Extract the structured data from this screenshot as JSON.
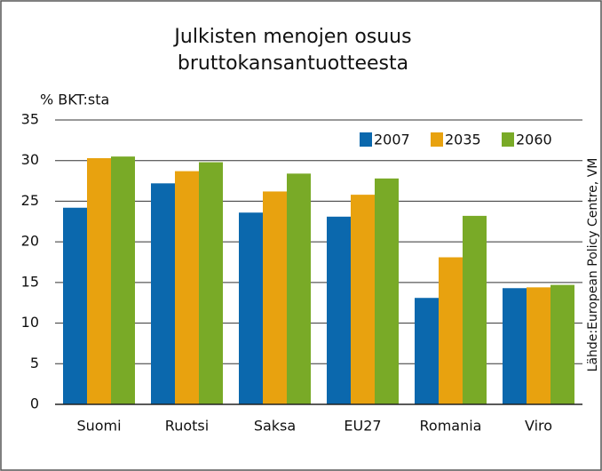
{
  "chart_data": {
    "type": "bar",
    "title": [
      "Julkisten menojen osuus",
      "bruttokansantuotteesta"
    ],
    "y_label": "% BKT:sta",
    "source": "Lähde:European Policy Centre, VM",
    "categories": [
      "Suomi",
      "Ruotsi",
      "Saksa",
      "EU27",
      "Romania",
      "Viro"
    ],
    "series": [
      {
        "name": "2007",
        "color": "#0b68ad",
        "values": [
          24.2,
          27.2,
          23.6,
          23.1,
          13.1,
          14.3
        ]
      },
      {
        "name": "2035",
        "color": "#e8a20f",
        "values": [
          30.3,
          28.7,
          26.2,
          25.8,
          18.1,
          14.4
        ]
      },
      {
        "name": "2060",
        "color": "#79aa27",
        "values": [
          30.5,
          29.8,
          28.4,
          27.8,
          23.2,
          14.7
        ]
      }
    ],
    "ylim": [
      0,
      35
    ],
    "yticks": [
      0,
      5,
      10,
      15,
      20,
      25,
      30,
      35
    ],
    "grid": true,
    "legend": "top-right"
  }
}
